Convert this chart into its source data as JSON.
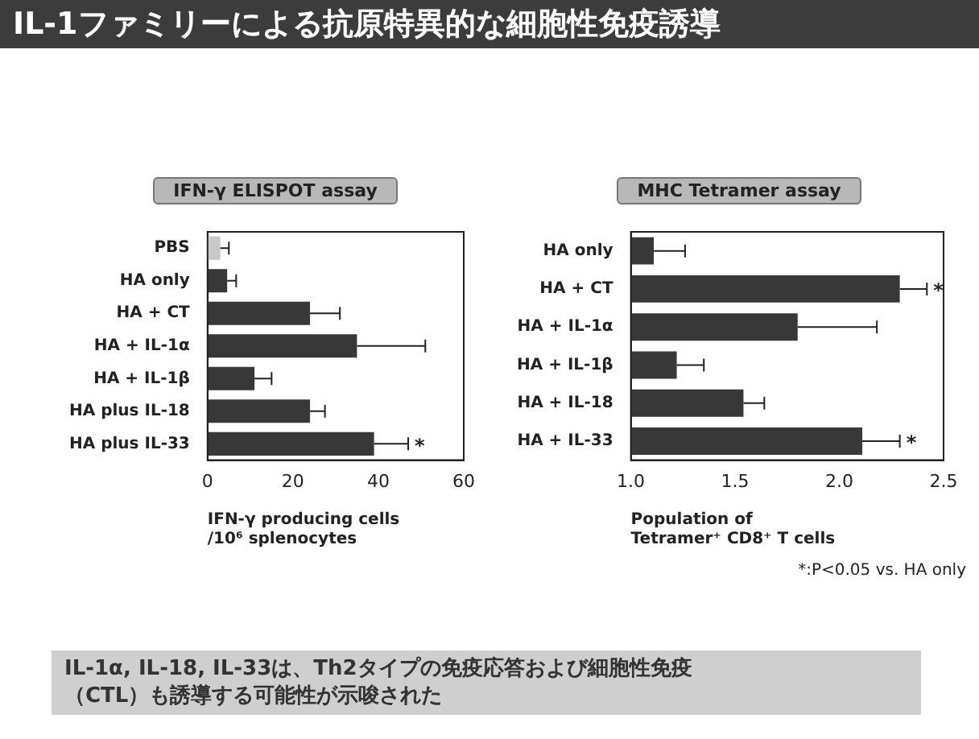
{
  "chart_data": [
    {
      "type": "bar",
      "orientation": "horizontal",
      "title": "IFN-γ ELISPOT assay",
      "xlabel": "IFN-γ producing cells\n/10⁶ splenocytes",
      "categories": [
        "PBS",
        "HA only",
        "HA + CT",
        "HA + IL-1α",
        "HA + IL-1β",
        "HA plus IL-18",
        "HA plus IL-33"
      ],
      "values": [
        3,
        4.6,
        24,
        35,
        11,
        24,
        39
      ],
      "colors": [
        "#c8c8c8",
        "#383838",
        "#383838",
        "#383838",
        "#383838",
        "#383838",
        "#383838"
      ],
      "errors": [
        [
          3,
          5
        ],
        [
          4.6,
          6.7
        ],
        [
          24,
          31
        ],
        [
          35,
          51
        ],
        [
          11,
          15
        ],
        [
          24,
          27.5
        ],
        [
          39,
          47
        ]
      ],
      "xlim": [
        0,
        60
      ],
      "xticks": [
        0,
        20,
        40,
        60
      ],
      "annotations": [
        {
          "text": "*",
          "x": 47,
          "y": "HA plus IL-33"
        }
      ]
    },
    {
      "type": "bar",
      "orientation": "horizontal",
      "title": "MHC Tetramer assay",
      "xlabel": "Population of\nTetramer⁺ CD8⁺ T cells",
      "categories": [
        "HA only",
        "HA + CT",
        "HA + IL-1α",
        "HA + IL-1β",
        "HA + IL-18",
        "HA + IL-33"
      ],
      "values": [
        1.11,
        2.29,
        1.8,
        1.22,
        1.54,
        2.11
      ],
      "color": "#383838",
      "errors": [
        [
          1.11,
          1.26
        ],
        [
          2.29,
          2.42
        ],
        [
          1.8,
          2.18
        ],
        [
          1.22,
          1.35
        ],
        [
          1.54,
          1.64
        ],
        [
          2.11,
          2.29
        ]
      ],
      "xlim": [
        1.0,
        2.5
      ],
      "xticks": [
        {
          "value": 1,
          "label": "1.0"
        },
        1.5,
        {
          "value": 2,
          "label": "2.0"
        },
        2.5
      ],
      "annotations": [
        {
          "text": "*",
          "x": 2.42,
          "y": "HA + CT"
        },
        {
          "text": "*",
          "x": 2.29,
          "y": "HA + IL-33"
        },
        "*:P<0.05 vs. HA only"
      ]
    },
    {
      "type": "other",
      "title": "IL-1ファミリーによる抗原特異的な細胞性免疫誘導",
      "annotations": [
        "IL-1α, IL-18, IL-33は、Th2タイプの免疫応答および細胞性免疫（CTL）も誘導する可能性が示唆された"
      ]
    }
  ]
}
